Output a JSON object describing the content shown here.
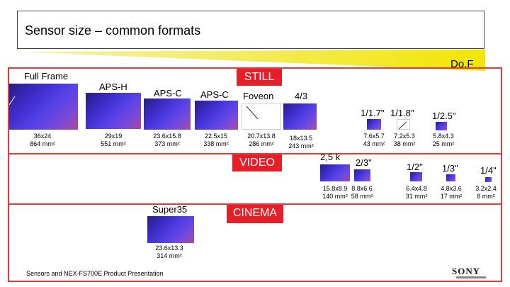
{
  "title": "Sensor size – common formats",
  "dof_label": "Do.F",
  "tags": {
    "still": "STILL",
    "video": "VIDEO",
    "cinema": "CINEMA"
  },
  "formats": [
    {
      "name": "Full Frame",
      "dims": "36x24",
      "area": "864 mm²"
    },
    {
      "name": "APS-H",
      "dims": "29x19",
      "area": "551 mm²"
    },
    {
      "name": "APS-C",
      "dims": "23.6x15.8",
      "area": "373 mm²"
    },
    {
      "name": "APS-C",
      "dims": "22.5x15",
      "area": "338 mm²"
    },
    {
      "name": "Foveon",
      "dims": "20.7x13.8",
      "area": "286 mm²"
    },
    {
      "name": "4/3",
      "dims": "18x13.5",
      "area": "243 mm²"
    },
    {
      "name": "1/1.7\"",
      "dims": "7.6x5.7",
      "area": "43 mm²"
    },
    {
      "name": "1/1.8\"",
      "dims": "7.2x5.3",
      "area": "38 mm²"
    },
    {
      "name": "1/2.5\"",
      "dims": "5.8x4.3",
      "area": "25 mm²"
    }
  ],
  "video_formats": [
    {
      "name": "2,5 k",
      "dims": "15.8x8.9",
      "area": "140 mm²"
    },
    {
      "name": "2/3\"",
      "dims": "8.8x6.6",
      "area": "58 mm²"
    },
    {
      "name": "1/2\"",
      "dims": "6.4x4.8",
      "area": "31 mm²"
    },
    {
      "name": "1/3\"",
      "dims": "4.8x3.6",
      "area": "17 mm²"
    },
    {
      "name": "1/4\"",
      "dims": "3.2x2.4",
      "area": "8 mm²"
    }
  ],
  "cinema_formats": [
    {
      "name": "Super35",
      "dims": "23.6x13.3",
      "area": "314 mm²"
    }
  ],
  "footer": "Sensors and NEX-FS700E Product Presentation",
  "brand": "SONY"
}
